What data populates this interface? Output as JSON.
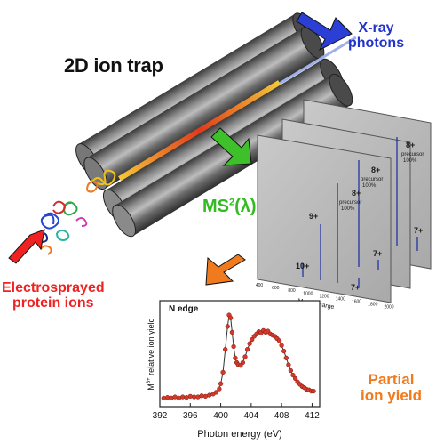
{
  "labels": {
    "trap_title": "2D ion trap",
    "xray_line1": "X-ray",
    "xray_line2": "photons",
    "ms2_main": "MS",
    "ms2_sup": "2",
    "ms2_tail": "(λ)",
    "esi_line1": "Electrosprayed",
    "esi_line2": "protein ions",
    "partial_line1": "Partial",
    "partial_line2": "ion yield"
  },
  "spectra": {
    "xlabel": "Mass/Charge",
    "ticks": [
      "400",
      "600",
      "800",
      "1000",
      "1200",
      "1400",
      "1600",
      "1800",
      "2000"
    ],
    "peaks": [
      "10+",
      "9+",
      "8+",
      "7+"
    ],
    "precursor_line1": "precursor",
    "precursor_line2": "100%"
  },
  "colors": {
    "xray_arrow": "#2b3fd6",
    "ms2_arrow": "#3ec02a",
    "esi_arrow": "#ee2222",
    "partial_arrow": "#f07a1e",
    "trap_cylinder": "#5a5a5a",
    "data_points": "#d43a2a"
  },
  "chart_data": {
    "type": "scatter",
    "title": "N edge",
    "xlabel": "Photon energy (eV)",
    "ylabel": "M",
    "ylabel_sup": "8+",
    "ylabel_tail": " relative ion yield",
    "xlim": [
      392,
      413
    ],
    "ylim": [
      0.25,
      2.1
    ],
    "xticks": [
      392,
      396,
      400,
      404,
      408,
      412
    ],
    "grid": false,
    "series": [
      {
        "x": [
          392.5,
          393.0,
          393.5,
          394.0,
          394.5,
          395.0,
          395.5,
          396.0,
          396.5,
          397.0,
          397.5,
          398.0,
          398.5,
          399.0,
          399.4,
          399.8,
          400.0,
          400.3,
          400.6,
          400.9,
          401.1,
          401.3,
          401.5,
          401.7,
          401.9,
          402.1,
          402.3,
          402.6,
          402.9,
          403.2,
          403.5,
          403.8,
          404.1,
          404.4,
          404.7,
          405.0,
          405.3,
          405.6,
          405.9,
          406.2,
          406.5,
          406.8,
          407.1,
          407.4,
          407.7,
          408.0,
          408.3,
          408.6,
          408.9,
          409.2,
          409.5,
          409.8,
          410.1,
          410.4,
          410.7,
          411.0,
          411.3,
          411.6,
          411.9,
          412.2
        ],
        "y": [
          0.4,
          0.41,
          0.4,
          0.42,
          0.4,
          0.42,
          0.41,
          0.43,
          0.42,
          0.42,
          0.44,
          0.43,
          0.45,
          0.47,
          0.5,
          0.56,
          0.65,
          0.85,
          1.25,
          1.65,
          1.85,
          1.8,
          1.55,
          1.3,
          1.1,
          1.02,
          0.98,
          0.97,
          1.02,
          1.12,
          1.25,
          1.35,
          1.42,
          1.48,
          1.52,
          1.56,
          1.54,
          1.58,
          1.55,
          1.57,
          1.52,
          1.5,
          1.48,
          1.44,
          1.4,
          1.32,
          1.22,
          1.1,
          0.98,
          0.88,
          0.8,
          0.74,
          0.68,
          0.64,
          0.6,
          0.58,
          0.55,
          0.54,
          0.52,
          0.52
        ]
      }
    ]
  }
}
